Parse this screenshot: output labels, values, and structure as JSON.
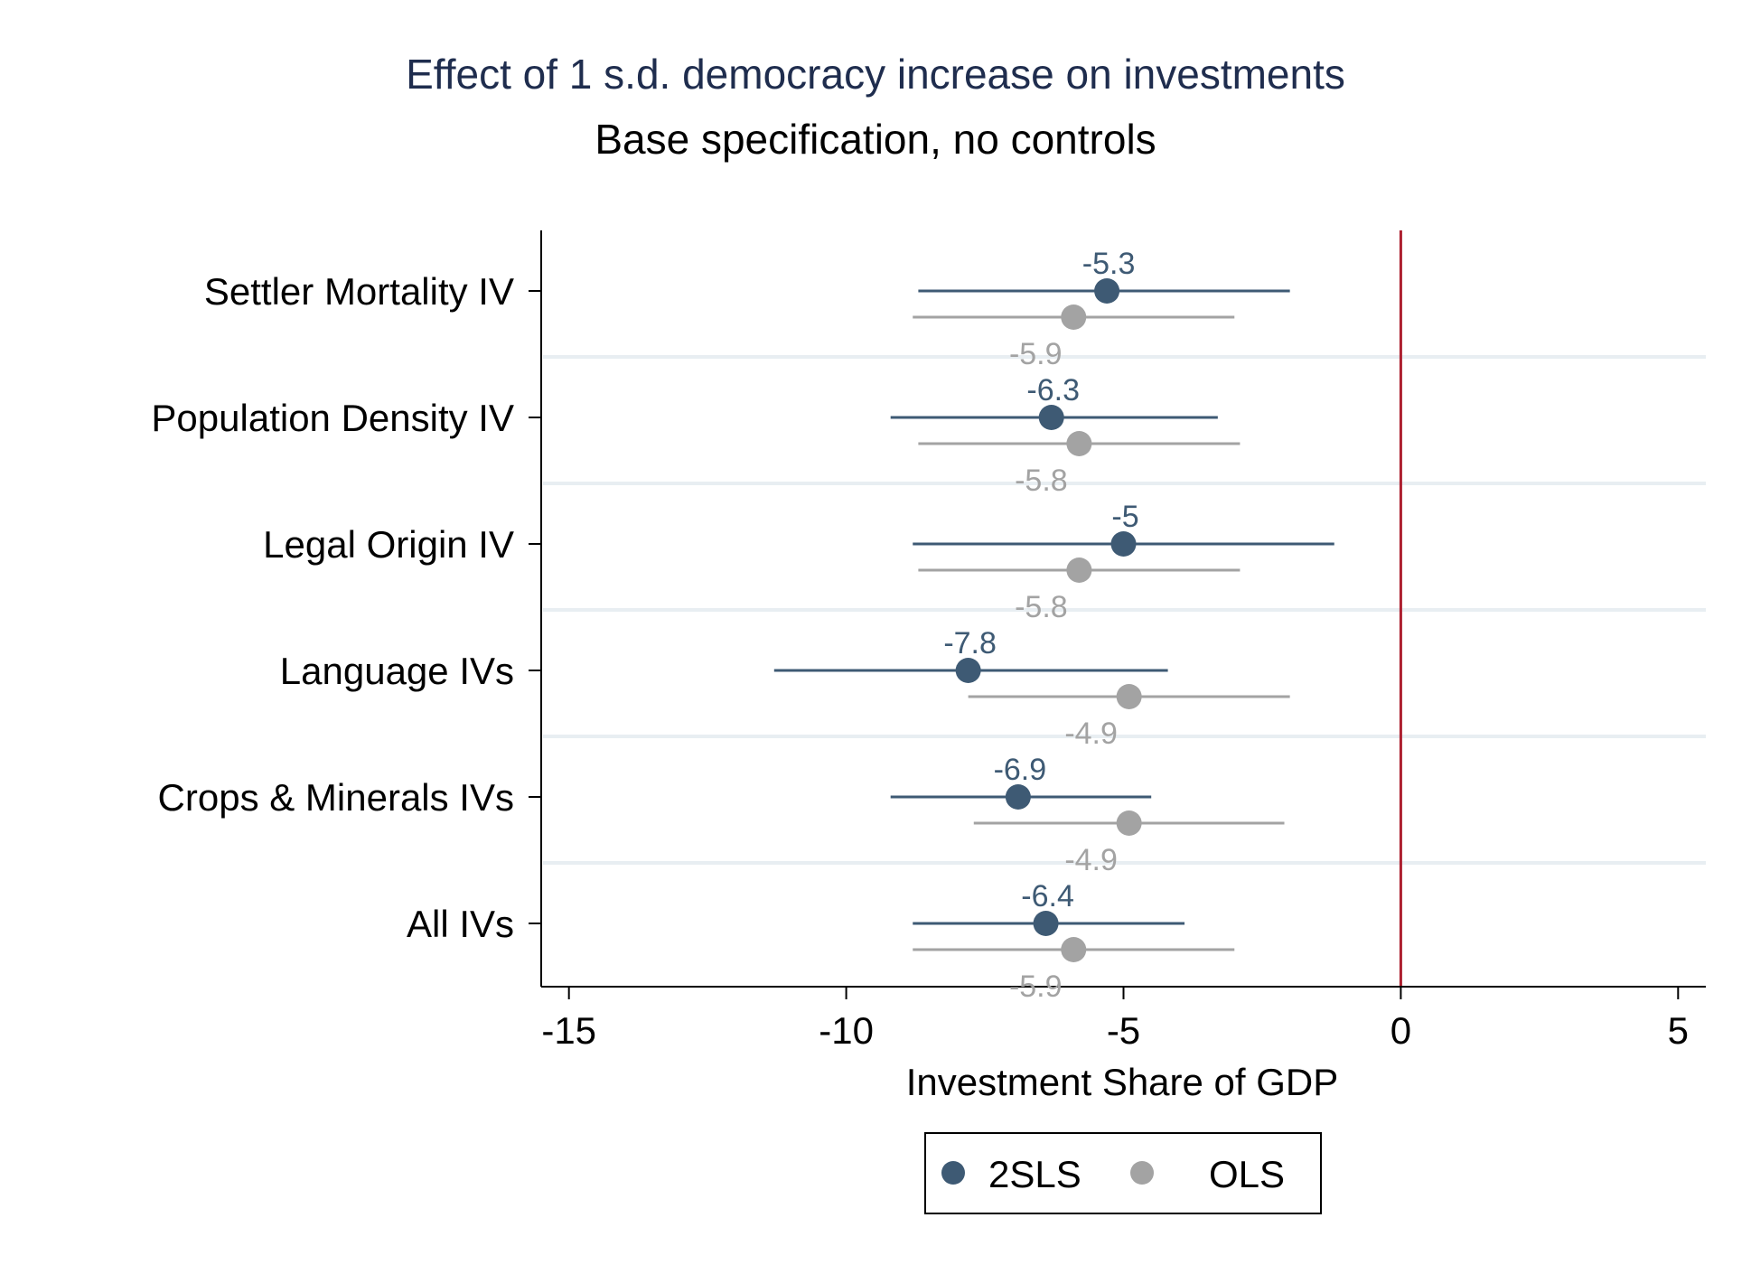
{
  "chart_data": {
    "type": "coefficient-plot",
    "title": "Effect of 1 s.d. democracy increase on investments",
    "subtitle": "Base specification, no controls",
    "xlabel": "Investment Share of GDP",
    "xlim": [
      -15.5,
      5.5
    ],
    "xticks": [
      "-15",
      "-10",
      "-5",
      "0",
      "5"
    ],
    "reference_line": 0,
    "categories": [
      "Settler Mortality IV",
      "Population Density IV",
      "Legal Origin IV",
      "Language IVs",
      "Crops & Minerals IVs",
      "All IVs"
    ],
    "series": [
      {
        "name": "2SLS",
        "color": "#3e5a74",
        "values": [
          -5.3,
          -6.3,
          -5.0,
          -7.8,
          -6.9,
          -6.4
        ],
        "labels": [
          "-5.3",
          "-6.3",
          "-5",
          "-7.8",
          "-6.9",
          "-6.4"
        ],
        "ci_low": [
          -8.7,
          -9.2,
          -8.8,
          -11.3,
          -9.2,
          -8.8
        ],
        "ci_high": [
          -2.0,
          -3.3,
          -1.2,
          -4.2,
          -4.5,
          -3.9
        ]
      },
      {
        "name": "OLS",
        "color": "#a3a3a3",
        "values": [
          -5.9,
          -5.8,
          -5.8,
          -4.9,
          -4.9,
          -5.9
        ],
        "labels": [
          "-5.9",
          "-5.8",
          "-5.8",
          "-4.9",
          "-4.9",
          "-5.9"
        ],
        "ci_low": [
          -8.8,
          -8.7,
          -8.7,
          -7.8,
          -7.7,
          -8.8
        ],
        "ci_high": [
          -3.0,
          -2.9,
          -2.9,
          -2.0,
          -2.1,
          -3.0
        ]
      }
    ],
    "legend_position": "bottom",
    "grid": "horizontal"
  }
}
